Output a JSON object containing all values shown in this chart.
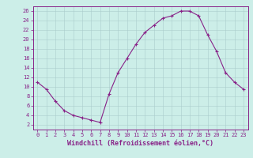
{
  "x": [
    0,
    1,
    2,
    3,
    4,
    5,
    6,
    7,
    8,
    9,
    10,
    11,
    12,
    13,
    14,
    15,
    16,
    17,
    18,
    19,
    20,
    21,
    22,
    23
  ],
  "y": [
    11,
    9.5,
    7,
    5,
    4,
    3.5,
    3,
    2.5,
    8.5,
    13,
    16,
    19,
    21.5,
    23,
    24.5,
    25,
    26,
    26,
    25,
    21,
    17.5,
    13,
    11,
    9.5
  ],
  "line_color": "#882288",
  "marker": "+",
  "bg_color": "#cceee8",
  "grid_color": "#aacccc",
  "xlabel": "Windchill (Refroidissement éolien,°C)",
  "xlabel_color": "#882288",
  "yticks": [
    2,
    4,
    6,
    8,
    10,
    12,
    14,
    16,
    18,
    20,
    22,
    24,
    26
  ],
  "xticks": [
    0,
    1,
    2,
    3,
    4,
    5,
    6,
    7,
    8,
    9,
    10,
    11,
    12,
    13,
    14,
    15,
    16,
    17,
    18,
    19,
    20,
    21,
    22,
    23
  ],
  "xlim": [
    -0.5,
    23.5
  ],
  "ylim": [
    1,
    27
  ],
  "tick_color": "#882288",
  "spine_color": "#882288",
  "axis_bg": "#cceee8",
  "tick_fontsize": 5,
  "xlabel_fontsize": 6,
  "linewidth": 0.8,
  "markersize": 3.5
}
